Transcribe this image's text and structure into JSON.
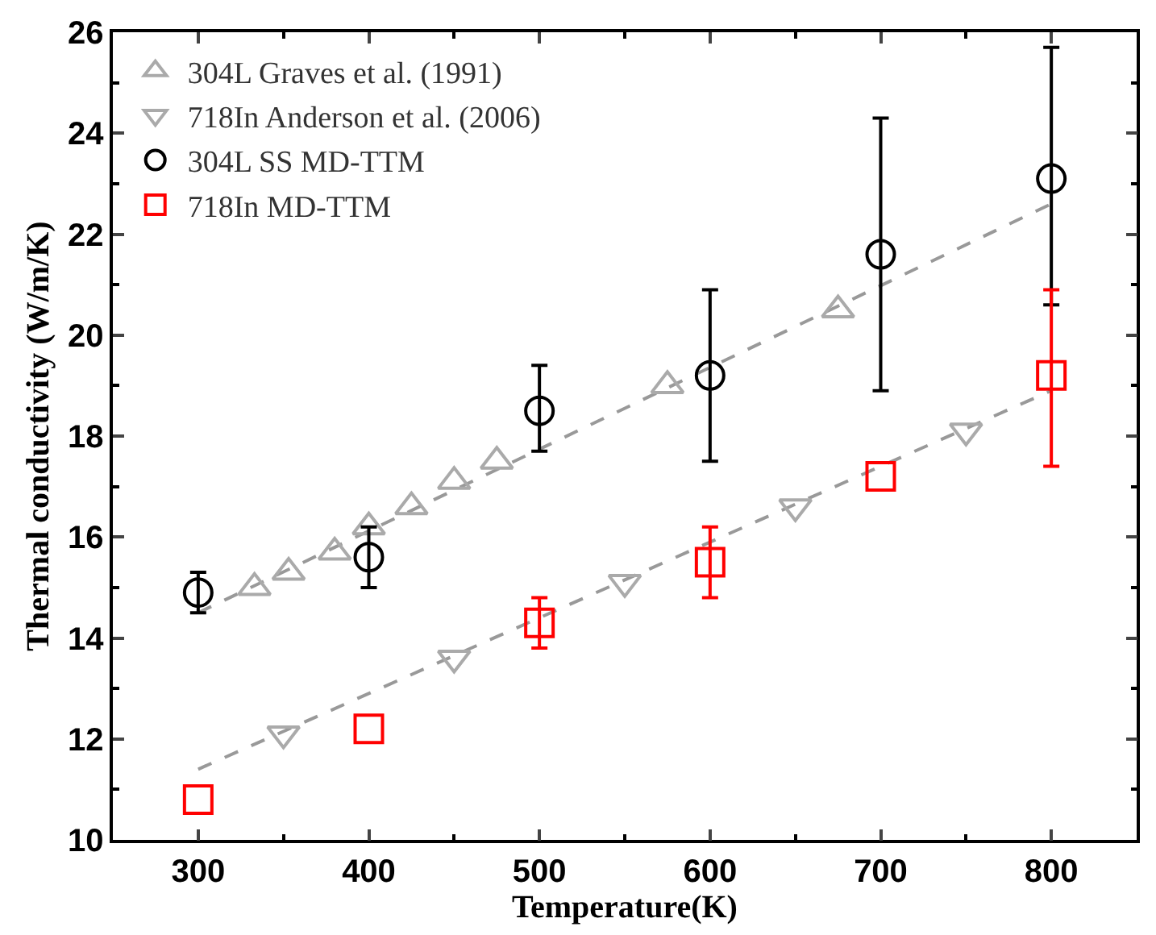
{
  "chart_data": {
    "type": "scatter",
    "xlabel": "Temperature(K)",
    "ylabel": "Thermal conductivity (W/m/K)",
    "xlim": [
      250,
      850
    ],
    "ylim": [
      10,
      26
    ],
    "xticks": [
      300,
      400,
      500,
      600,
      700,
      800
    ],
    "yticks": [
      10,
      12,
      14,
      16,
      18,
      20,
      22,
      24,
      26
    ],
    "legend": "top left",
    "series": [
      {
        "name": "304L Graves et al. (1991)",
        "color": "#aaaaaa",
        "marker": "triangle",
        "x": [
          333,
          353,
          380,
          400,
          425,
          450,
          475,
          575,
          675
        ],
        "values": [
          15.0,
          15.3,
          15.7,
          16.2,
          16.6,
          17.1,
          17.5,
          19.0,
          20.5
        ]
      },
      {
        "name": "718In Anderson et al. (2006)",
        "color": "#aaaaaa",
        "marker": "triangle-down",
        "x": [
          350,
          450,
          550,
          650,
          750
        ],
        "values": [
          12.1,
          13.6,
          15.1,
          16.6,
          18.1
        ]
      },
      {
        "name": "304L SS MD-TTM",
        "color": "#000000",
        "marker": "circle",
        "x": [
          300,
          400,
          500,
          600,
          700,
          800
        ],
        "values": [
          14.9,
          15.6,
          18.5,
          19.2,
          21.6,
          23.1
        ],
        "errors": [
          [
            14.5,
            15.3
          ],
          [
            15.0,
            16.2
          ],
          [
            17.7,
            19.4
          ],
          [
            17.5,
            20.9
          ],
          [
            18.9,
            24.3
          ],
          [
            20.6,
            25.7
          ]
        ]
      },
      {
        "name": "718In MD-TTM",
        "color": "#ff0000",
        "marker": "square",
        "x": [
          300,
          400,
          500,
          600,
          700,
          800
        ],
        "values": [
          10.8,
          12.2,
          14.3,
          15.5,
          17.2,
          19.2
        ],
        "errors": [
          null,
          null,
          [
            13.8,
            14.8
          ],
          [
            14.8,
            16.2
          ],
          null,
          [
            17.4,
            20.9
          ]
        ]
      },
      {
        "type": "line",
        "color": "#999999",
        "line_style": "dashed",
        "x": [
          300,
          800
        ],
        "values": [
          14.5,
          22.6
        ]
      },
      {
        "type": "line",
        "color": "#999999",
        "line_style": "dashed",
        "x": [
          300,
          800
        ],
        "values": [
          11.4,
          18.9
        ]
      }
    ]
  }
}
